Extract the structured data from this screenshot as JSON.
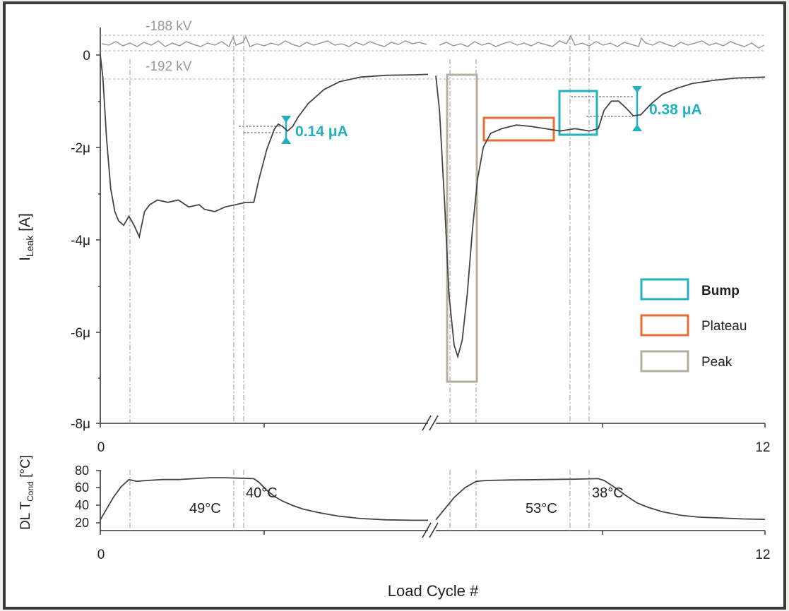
{
  "chart_data": [
    {
      "type": "line",
      "panel": "top",
      "ylabel_main": "I",
      "ylabel_sub": "Leak",
      "ylabel_unit": " [A]",
      "yticks": [
        "0",
        "-2μ",
        "-4μ",
        "-6μ",
        "-8μ"
      ],
      "ytick_values": [
        0,
        -2,
        -4,
        -6,
        -8
      ],
      "ylim": [
        -8,
        0.9
      ],
      "xticks": [
        "0",
        "12"
      ],
      "xlim": [
        0,
        12
      ],
      "broken_x_axis": true,
      "grid": false,
      "legend_position": "right",
      "legend": [
        {
          "label": "Bump",
          "color": "#22b1bf",
          "bold": true
        },
        {
          "label": "Plateau",
          "color": "#e96d33",
          "bold": false
        },
        {
          "label": "Peak",
          "color": "#b4aea2",
          "bold": false
        }
      ],
      "voltage_labels": [
        "-188 kV",
        "-192 kV"
      ],
      "annotations": [
        {
          "text": "0.14 μA",
          "color": "#22b1bf"
        },
        {
          "text": "0.38 μA",
          "color": "#22b1bf"
        }
      ],
      "series": [
        {
          "values_uA": [
            [
              0.0,
              0.0
            ],
            [
              0.05,
              -0.5
            ],
            [
              0.12,
              -1.8
            ],
            [
              0.2,
              -2.9
            ],
            [
              0.28,
              -3.4
            ],
            [
              0.35,
              -3.6
            ],
            [
              0.45,
              -3.7
            ],
            [
              0.55,
              -3.5
            ],
            [
              0.65,
              -3.7
            ],
            [
              0.75,
              -3.95
            ],
            [
              0.85,
              -3.4
            ],
            [
              0.95,
              -3.25
            ],
            [
              1.1,
              -3.15
            ],
            [
              1.3,
              -3.2
            ],
            [
              1.5,
              -3.15
            ],
            [
              1.7,
              -3.3
            ],
            [
              1.9,
              -3.25
            ],
            [
              2.0,
              -3.35
            ],
            [
              2.2,
              -3.4
            ],
            [
              2.4,
              -3.3
            ],
            [
              2.6,
              -3.25
            ],
            [
              2.8,
              -3.2
            ],
            [
              2.95,
              -3.2
            ],
            [
              3.05,
              -2.7
            ],
            [
              3.2,
              -2.05
            ],
            [
              3.35,
              -1.6
            ],
            [
              3.42,
              -1.5
            ],
            [
              3.5,
              -1.55
            ],
            [
              3.6,
              -1.65
            ],
            [
              3.7,
              -1.55
            ],
            [
              3.8,
              -1.35
            ],
            [
              4.0,
              -1.05
            ],
            [
              4.3,
              -0.75
            ],
            [
              4.6,
              -0.58
            ],
            [
              5.0,
              -0.48
            ],
            [
              5.5,
              -0.44
            ],
            [
              6.0,
              -0.43
            ],
            [
              6.3,
              -0.42
            ],
            [
              7.5,
              -0.45
            ],
            [
              7.55,
              -1.2
            ],
            [
              7.62,
              -3.2
            ],
            [
              7.68,
              -5.2
            ],
            [
              7.75,
              -6.3
            ],
            [
              7.8,
              -6.55
            ],
            [
              7.86,
              -6.2
            ],
            [
              7.93,
              -5.2
            ],
            [
              8.0,
              -3.8
            ],
            [
              8.07,
              -2.7
            ],
            [
              8.15,
              -2.0
            ],
            [
              8.25,
              -1.7
            ],
            [
              8.4,
              -1.6
            ],
            [
              8.6,
              -1.52
            ],
            [
              8.8,
              -1.55
            ],
            [
              9.0,
              -1.6
            ],
            [
              9.2,
              -1.65
            ],
            [
              9.4,
              -1.6
            ],
            [
              9.6,
              -1.65
            ],
            [
              9.72,
              -1.6
            ],
            [
              9.8,
              -1.2
            ],
            [
              9.9,
              -1.0
            ],
            [
              10.0,
              -1.0
            ],
            [
              10.1,
              -1.15
            ],
            [
              10.2,
              -1.32
            ],
            [
              10.3,
              -1.3
            ],
            [
              10.45,
              -1.05
            ],
            [
              10.6,
              -0.85
            ],
            [
              10.8,
              -0.72
            ],
            [
              11.0,
              -0.62
            ],
            [
              11.3,
              -0.55
            ],
            [
              11.6,
              -0.5
            ],
            [
              12.0,
              -0.48
            ]
          ]
        }
      ]
    },
    {
      "type": "line",
      "panel": "bottom",
      "ylabel_main": "DL T",
      "ylabel_sub": "Cond",
      "ylabel_unit": " [°C]",
      "yticks": [
        "80",
        "60",
        "40",
        "20"
      ],
      "ytick_values": [
        80,
        60,
        40,
        20
      ],
      "ylim": [
        13,
        82
      ],
      "xticks": [
        "0",
        "12"
      ],
      "xlim": [
        0,
        12
      ],
      "xlabel": "Load Cycle #",
      "annotations": [
        "49°C",
        "40°C",
        "53°C",
        "38°C"
      ],
      "series": [
        {
          "values_C": [
            [
              0.0,
              25
            ],
            [
              0.1,
              35
            ],
            [
              0.25,
              50
            ],
            [
              0.4,
              62
            ],
            [
              0.55,
              70
            ],
            [
              0.7,
              68
            ],
            [
              0.9,
              69
            ],
            [
              1.2,
              70
            ],
            [
              1.5,
              70
            ],
            [
              1.8,
              71
            ],
            [
              2.1,
              72
            ],
            [
              2.4,
              72
            ],
            [
              2.7,
              71.5
            ],
            [
              2.95,
              71
            ],
            [
              3.05,
              67
            ],
            [
              3.2,
              58
            ],
            [
              3.35,
              51
            ],
            [
              3.5,
              46
            ],
            [
              3.7,
              41
            ],
            [
              3.9,
              37
            ],
            [
              4.2,
              33
            ],
            [
              4.6,
              29
            ],
            [
              5.0,
              26.5
            ],
            [
              5.5,
              25
            ],
            [
              6.0,
              24.5
            ],
            [
              6.3,
              24.5
            ],
            [
              7.5,
              25
            ],
            [
              7.6,
              35
            ],
            [
              7.75,
              50
            ],
            [
              7.9,
              61
            ],
            [
              8.05,
              68
            ],
            [
              8.2,
              69
            ],
            [
              8.5,
              69.5
            ],
            [
              9.0,
              70
            ],
            [
              9.4,
              70.5
            ],
            [
              9.72,
              71
            ],
            [
              9.8,
              69
            ],
            [
              9.95,
              61
            ],
            [
              10.1,
              52
            ],
            [
              10.25,
              44
            ],
            [
              10.4,
              39
            ],
            [
              10.6,
              34
            ],
            [
              10.85,
              30
            ],
            [
              11.1,
              28
            ],
            [
              11.4,
              27
            ],
            [
              11.7,
              26
            ],
            [
              12.0,
              25.5
            ]
          ]
        }
      ]
    }
  ]
}
